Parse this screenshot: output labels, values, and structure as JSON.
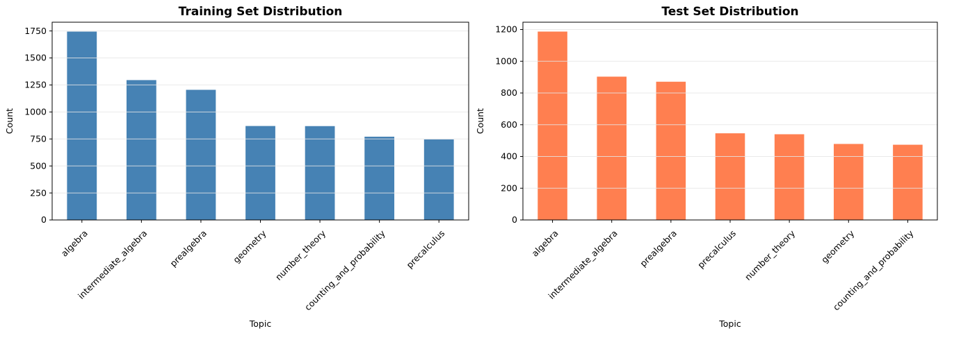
{
  "figure": {
    "background": "#ffffff"
  },
  "chart_data": [
    {
      "type": "bar",
      "title": "Training Set Distribution",
      "xlabel": "Topic",
      "ylabel": "Count",
      "categories": [
        "algebra",
        "intermediate_algebra",
        "prealgebra",
        "geometry",
        "number_theory",
        "counting_and_probability",
        "precalculus"
      ],
      "values": [
        1744,
        1295,
        1205,
        870,
        869,
        771,
        746
      ],
      "yticks": [
        0,
        250,
        500,
        750,
        1000,
        1250,
        1500,
        1750
      ],
      "ylim": [
        0,
        1831
      ],
      "bar_color": "#4682b4",
      "grid": true,
      "grid_color": "#e5e5e5",
      "legend": "none",
      "xtick_rotation": 45
    },
    {
      "type": "bar",
      "title": "Test Set Distribution",
      "xlabel": "Topic",
      "ylabel": "Count",
      "categories": [
        "algebra",
        "intermediate_algebra",
        "prealgebra",
        "precalculus",
        "number_theory",
        "geometry",
        "counting_and_probability"
      ],
      "values": [
        1187,
        903,
        871,
        546,
        540,
        479,
        474
      ],
      "yticks": [
        0,
        200,
        400,
        600,
        800,
        1000,
        1200
      ],
      "ylim": [
        0,
        1246
      ],
      "bar_color": "#ff7f50",
      "grid": true,
      "grid_color": "#e5e5e5",
      "legend": "none",
      "xtick_rotation": 45
    }
  ]
}
